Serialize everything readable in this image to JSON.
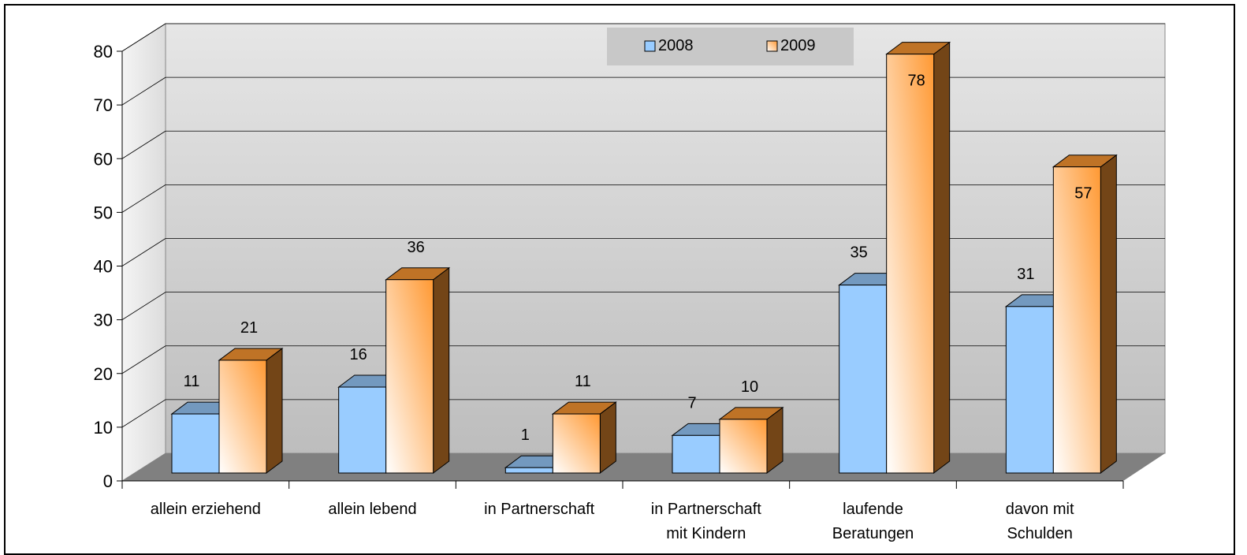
{
  "chart_data": {
    "type": "bar3d",
    "categories": [
      "allein erziehend",
      "allein lebend",
      "in Partnerschaft",
      "in Partnerschaft\nmit Kindern",
      "laufende\nBeratungen",
      "davon mit\nSchulden"
    ],
    "series": [
      {
        "name": "2008",
        "color": "#99ccff",
        "values": [
          11,
          16,
          1,
          7,
          35,
          31
        ]
      },
      {
        "name": "2009",
        "color": "#ff9933",
        "values": [
          21,
          36,
          11,
          10,
          78,
          57
        ]
      }
    ],
    "ylim": [
      0,
      80
    ],
    "yticks": [
      0,
      10,
      20,
      30,
      40,
      50,
      60,
      70,
      80
    ],
    "grid": true,
    "legend": "top"
  }
}
